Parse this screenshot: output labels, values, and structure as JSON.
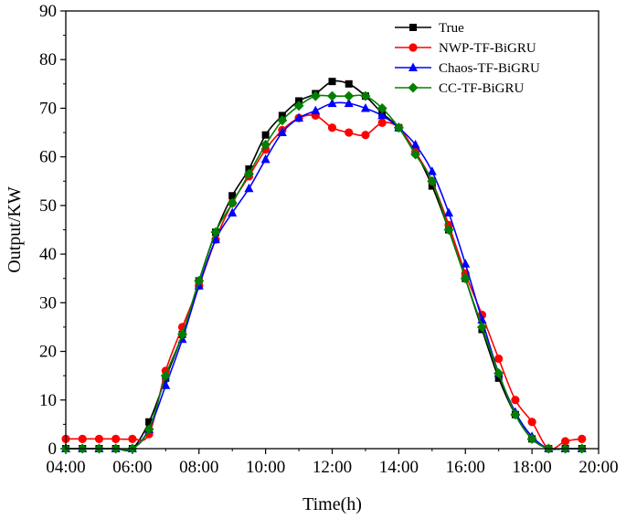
{
  "chart_data": {
    "type": "line",
    "title": "",
    "xlabel": "Time(h)",
    "ylabel": "Output/KW",
    "xlim": [
      4,
      20
    ],
    "ylim": [
      0,
      90
    ],
    "x_ticks": [
      4,
      6,
      8,
      10,
      12,
      14,
      16,
      18,
      20
    ],
    "x_tick_labels": [
      "04:00",
      "06:00",
      "08:00",
      "10:00",
      "12:00",
      "14:00",
      "16:00",
      "18:00",
      "20:00"
    ],
    "y_ticks": [
      0,
      10,
      20,
      30,
      40,
      50,
      60,
      70,
      80,
      90
    ],
    "y_tick_labels": [
      "0",
      "10",
      "20",
      "30",
      "40",
      "50",
      "60",
      "70",
      "80",
      "90"
    ],
    "grid": false,
    "legend_position": "top-right",
    "x": [
      4.0,
      4.5,
      5.0,
      5.5,
      6.0,
      6.5,
      7.0,
      7.5,
      8.0,
      8.5,
      9.0,
      9.5,
      10.0,
      10.5,
      11.0,
      11.5,
      12.0,
      12.5,
      13.0,
      13.5,
      14.0,
      14.5,
      15.0,
      15.5,
      16.0,
      16.5,
      17.0,
      17.5,
      18.0,
      18.5,
      19.0,
      19.5
    ],
    "series": [
      {
        "name": "True",
        "color": "#000000",
        "marker": "square",
        "values": [
          0,
          0,
          0,
          0,
          0,
          5.5,
          14.5,
          23.5,
          34.5,
          44.5,
          52,
          57.5,
          64.5,
          68.5,
          71.5,
          73,
          75.5,
          75,
          72.5,
          69,
          66,
          61,
          54,
          45,
          35,
          24.5,
          14.5,
          7,
          2,
          0,
          0,
          0
        ]
      },
      {
        "name": "NWP-TF-BiGRU",
        "color": "#ff0000",
        "marker": "circle",
        "values": [
          2,
          2,
          2,
          2,
          2,
          3,
          16,
          25,
          33.5,
          43,
          50.5,
          56,
          61.5,
          65.5,
          68,
          68.5,
          66,
          65,
          64.5,
          67,
          66,
          61,
          55,
          46,
          36,
          27.5,
          18.5,
          10,
          5.5,
          0,
          1.5,
          2
        ]
      },
      {
        "name": "Chaos-TF-BiGRU",
        "color": "#0000ff",
        "marker": "triangle",
        "values": [
          0,
          0,
          0,
          0,
          0,
          4,
          13,
          22.5,
          33.5,
          43,
          48.5,
          53.5,
          59.5,
          65,
          68,
          69.5,
          71,
          71,
          70,
          68.5,
          66,
          62.5,
          57,
          48.5,
          38,
          26.5,
          15.5,
          7.5,
          2.5,
          0,
          0,
          0
        ]
      },
      {
        "name": "CC-TF-BiGRU",
        "color": "#008000",
        "marker": "diamond",
        "values": [
          0,
          0,
          0,
          0,
          0,
          4,
          15,
          23.5,
          34.5,
          44.5,
          50.5,
          56.5,
          62.5,
          67.5,
          70.5,
          72.5,
          72.5,
          72.5,
          72.5,
          70,
          66,
          60.5,
          55,
          45,
          35,
          25,
          15.5,
          7,
          2,
          0,
          0,
          0
        ]
      }
    ]
  }
}
